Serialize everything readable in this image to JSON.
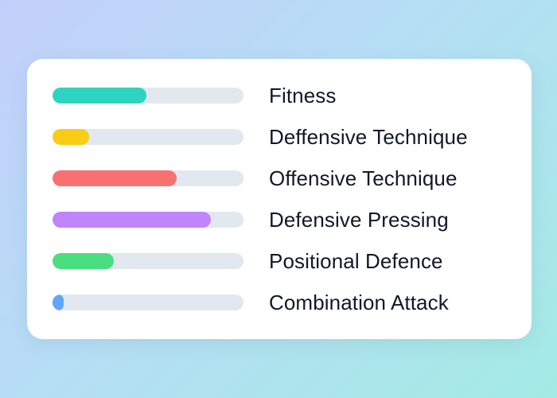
{
  "skills": [
    {
      "label": "Fitness",
      "progress": 0.49,
      "color": "#2dd4bf"
    },
    {
      "label": "Deffensive Technique",
      "progress": 0.19,
      "color": "#facc15"
    },
    {
      "label": "Offensive Technique",
      "progress": 0.65,
      "color": "#f87171"
    },
    {
      "label": "Defensive Pressing",
      "progress": 0.83,
      "color": "#c084fc"
    },
    {
      "label": "Positional Defence",
      "progress": 0.32,
      "color": "#4ade80"
    },
    {
      "label": "Combination Attack",
      "progress": 0.06,
      "color": "#60a5fa"
    }
  ],
  "colors": {
    "track": "#e2e8f0",
    "text": "#111827",
    "card": "#ffffff"
  }
}
